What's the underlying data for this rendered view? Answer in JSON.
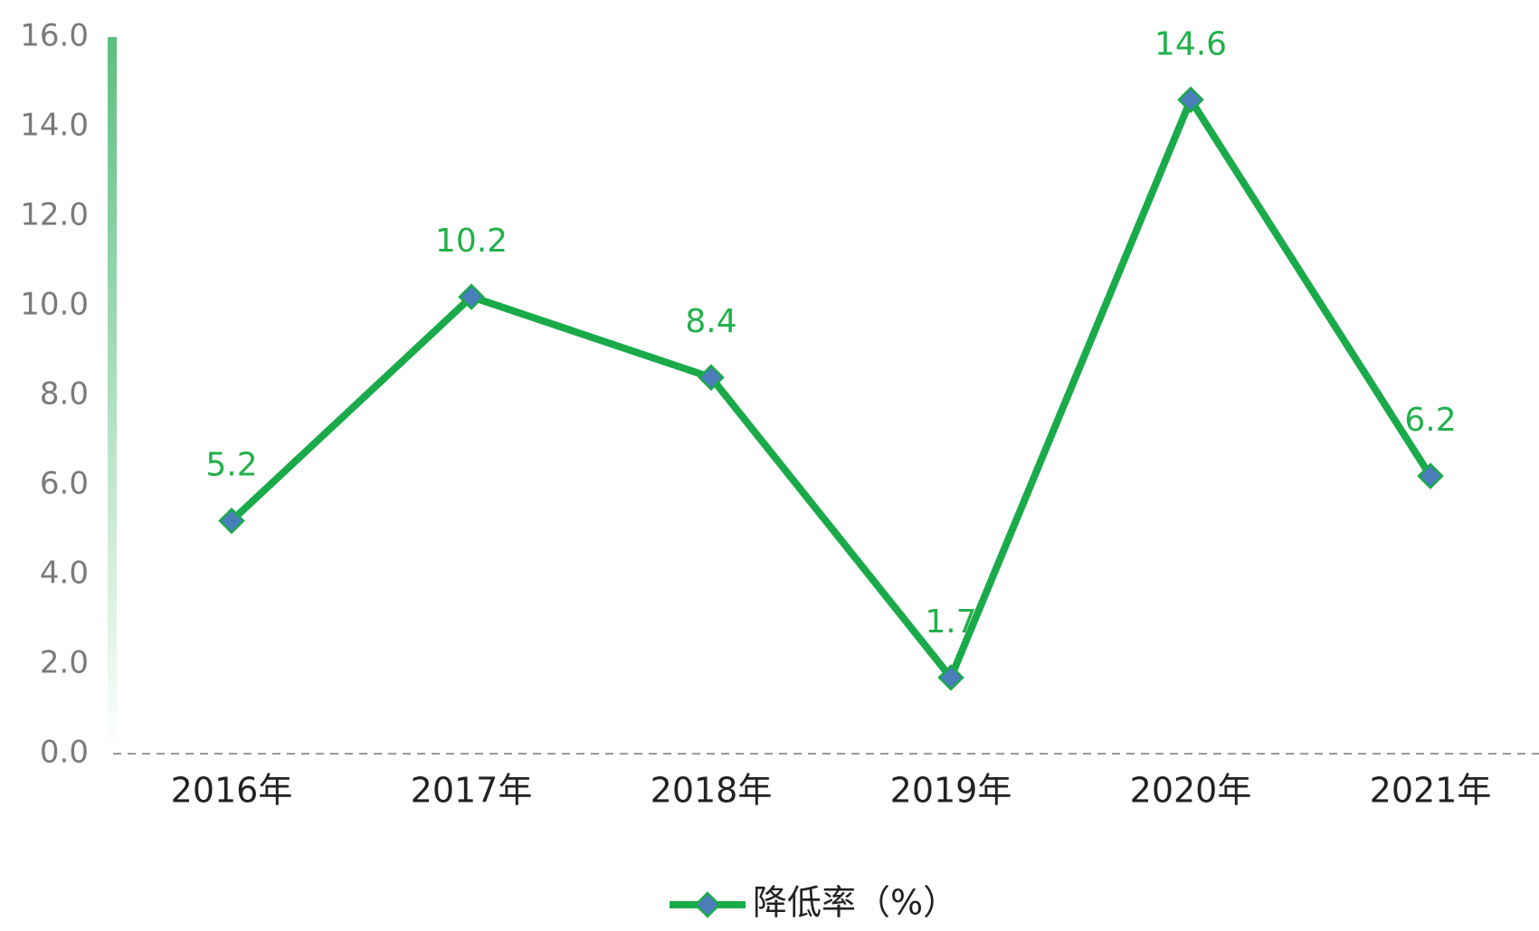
{
  "chart_data": {
    "type": "line",
    "categories": [
      "2016年",
      "2017年",
      "2018年",
      "2019年",
      "2020年",
      "2021年"
    ],
    "series": [
      {
        "name": "降低率（%）",
        "color": "#1aaa4a",
        "marker_color": "#4a7ebb",
        "values": [
          5.2,
          10.2,
          8.4,
          1.7,
          14.6,
          6.2
        ]
      }
    ],
    "ylim": [
      0,
      16
    ],
    "yticks": [
      {
        "value": 0,
        "label": "0.0"
      },
      {
        "value": 2,
        "label": "2.0"
      },
      {
        "value": 4,
        "label": "4.0"
      },
      {
        "value": 6,
        "label": "6.0"
      },
      {
        "value": 8,
        "label": "8.0"
      },
      {
        "value": 10,
        "label": "10.0"
      },
      {
        "value": 12,
        "label": "12.0"
      },
      {
        "value": 14,
        "label": "14.0"
      },
      {
        "value": 16,
        "label": "16.0"
      }
    ],
    "grid": false,
    "legend": "bottom"
  }
}
